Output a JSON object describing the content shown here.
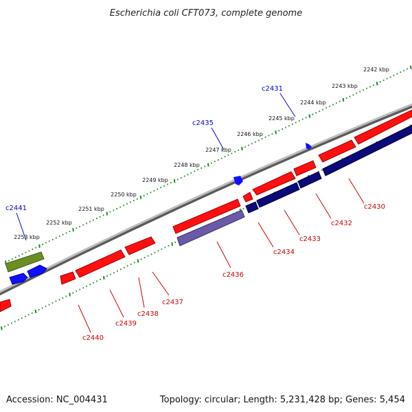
{
  "title": "Escherichia coli CFT073, complete genome",
  "footer": {
    "accession": "Accession: NC_004431",
    "summary": "Topology: circular; Length: 5,231,428 bp; Genes: 5,454"
  },
  "colors": {
    "backbone": "#8a8a8a",
    "ruler": "#1e8c1e",
    "forward_gene": "#ff1010",
    "reverse_gene": "#0a0a78",
    "reverse_gene_light": "#6a5aa8",
    "other_gene": "#6b8e23",
    "small_feature": "#1010ff",
    "upper_label": "#0000cc",
    "lower_label": "#cc0000"
  },
  "ruler_labels": [
    "2242 kbp",
    "2243 kbp",
    "2244 kbp",
    "2245 kbp",
    "2246 kbp",
    "2247 kbp",
    "2248 kbp",
    "2249 kbp",
    "2250 kbp",
    "2251 kbp",
    "2252 kbp",
    "2253 kbp"
  ],
  "upper_labels": [
    "c2431",
    "c2435",
    "c2441"
  ],
  "lower_labels": [
    "c2430",
    "c2432",
    "c2433",
    "c2434",
    "c2436",
    "c2437",
    "c2438",
    "c2439",
    "c2440"
  ]
}
